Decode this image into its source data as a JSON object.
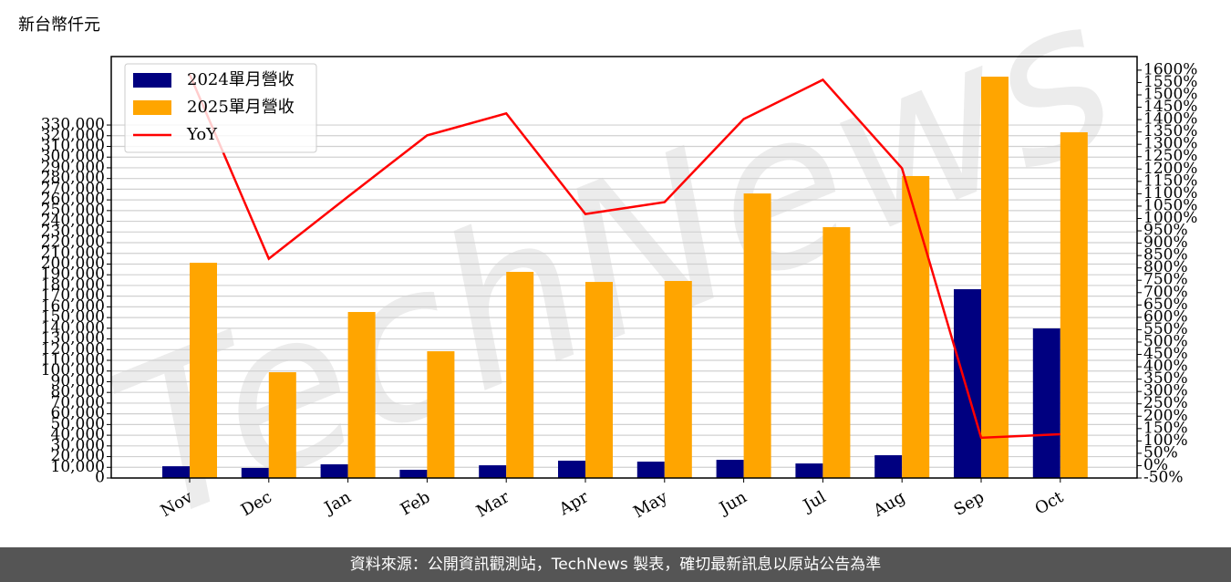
{
  "chart_data": {
    "type": "bar_line",
    "unit_label": "新台幣仟元",
    "watermark": "TechNews",
    "footer": "資料來源：公開資訊觀測站，TechNews 製表，確切最新訊息以原站公告為準",
    "categories": [
      "Nov",
      "Dec",
      "Jan",
      "Feb",
      "Mar",
      "Apr",
      "May",
      "Jun",
      "Jul",
      "Aug",
      "Sep",
      "Oct"
    ],
    "series": [
      {
        "name": "2024單月營收",
        "color": "#000080",
        "kind": "bar",
        "values": [
          11000,
          9400,
          12800,
          7700,
          11900,
          16200,
          15300,
          17000,
          13600,
          21300,
          176500,
          139800
        ]
      },
      {
        "name": "2025單月營收",
        "color": "#ffa500",
        "kind": "bar",
        "values": [
          201200,
          98900,
          155200,
          118500,
          192700,
          183300,
          184200,
          266000,
          234500,
          282300,
          375200,
          323200
        ]
      },
      {
        "name": "YoY",
        "color": "#ff0000",
        "kind": "line",
        "axis": "y2",
        "values": [
          1583,
          837,
          1088,
          1336,
          1425,
          1018,
          1066,
          1402,
          1561,
          1203,
          113,
          127
        ]
      }
    ],
    "ylim": [
      0,
      394000
    ],
    "yticks": [
      0,
      {
        "value": 10000,
        "label": "10,000"
      },
      {
        "value": 20000,
        "label": "20,000"
      },
      {
        "value": 30000,
        "label": "30,000"
      },
      {
        "value": 40000,
        "label": "40,000"
      },
      {
        "value": 50000,
        "label": "50,000"
      },
      {
        "value": 60000,
        "label": "60,000"
      },
      {
        "value": 70000,
        "label": "70,000"
      },
      {
        "value": 80000,
        "label": "80,000"
      },
      {
        "value": 90000,
        "label": "90,000"
      },
      {
        "value": 100000,
        "label": "100,000"
      },
      {
        "value": 110000,
        "label": "110,000"
      },
      {
        "value": 120000,
        "label": "120,000"
      },
      {
        "value": 130000,
        "label": "130,000"
      },
      {
        "value": 140000,
        "label": "140,000"
      },
      {
        "value": 150000,
        "label": "150,000"
      },
      {
        "value": 160000,
        "label": "160,000"
      },
      {
        "value": 170000,
        "label": "170,000"
      },
      {
        "value": 180000,
        "label": "180,000"
      },
      {
        "value": 190000,
        "label": "190,000"
      },
      {
        "value": 200000,
        "label": "200,000"
      },
      {
        "value": 210000,
        "label": "210,000"
      },
      {
        "value": 220000,
        "label": "220,000"
      },
      {
        "value": 230000,
        "label": "230,000"
      },
      {
        "value": 240000,
        "label": "240,000"
      },
      {
        "value": 250000,
        "label": "250,000"
      },
      {
        "value": 260000,
        "label": "260,000"
      },
      {
        "value": 270000,
        "label": "270,000"
      },
      {
        "value": 280000,
        "label": "280,000"
      },
      {
        "value": 290000,
        "label": "290,000"
      },
      {
        "value": 300000,
        "label": "300,000"
      },
      {
        "value": 310000,
        "label": "310,000"
      },
      {
        "value": 320000,
        "label": "320,000"
      },
      {
        "value": 330000,
        "label": "330,000"
      }
    ],
    "y2lim": [
      -50,
      1655
    ],
    "y2ticks": [
      {
        "value": -50,
        "label": "-50%"
      },
      {
        "value": 0,
        "label": "0%"
      },
      {
        "value": 50,
        "label": "50%"
      },
      {
        "value": 100,
        "label": "100%"
      },
      {
        "value": 150,
        "label": "150%"
      },
      {
        "value": 200,
        "label": "200%"
      },
      {
        "value": 250,
        "label": "250%"
      },
      {
        "value": 300,
        "label": "300%"
      },
      {
        "value": 350,
        "label": "350%"
      },
      {
        "value": 400,
        "label": "400%"
      },
      {
        "value": 450,
        "label": "450%"
      },
      {
        "value": 500,
        "label": "500%"
      },
      {
        "value": 550,
        "label": "550%"
      },
      {
        "value": 600,
        "label": "600%"
      },
      {
        "value": 650,
        "label": "650%"
      },
      {
        "value": 700,
        "label": "700%"
      },
      {
        "value": 750,
        "label": "750%"
      },
      {
        "value": 800,
        "label": "800%"
      },
      {
        "value": 850,
        "label": "850%"
      },
      {
        "value": 900,
        "label": "900%"
      },
      {
        "value": 950,
        "label": "950%"
      },
      {
        "value": 1000,
        "label": "1000%"
      },
      {
        "value": 1050,
        "label": "1050%"
      },
      {
        "value": 1100,
        "label": "1100%"
      },
      {
        "value": 1150,
        "label": "1150%"
      },
      {
        "value": 1200,
        "label": "1200%"
      },
      {
        "value": 1250,
        "label": "1250%"
      },
      {
        "value": 1300,
        "label": "1300%"
      },
      {
        "value": 1350,
        "label": "1350%"
      },
      {
        "value": 1400,
        "label": "1400%"
      },
      {
        "value": 1450,
        "label": "1450%"
      },
      {
        "value": 1500,
        "label": "1500%"
      },
      {
        "value": 1550,
        "label": "1550%"
      },
      {
        "value": 1600,
        "label": "1600%"
      }
    ],
    "grid": true,
    "legend": "upper left"
  }
}
